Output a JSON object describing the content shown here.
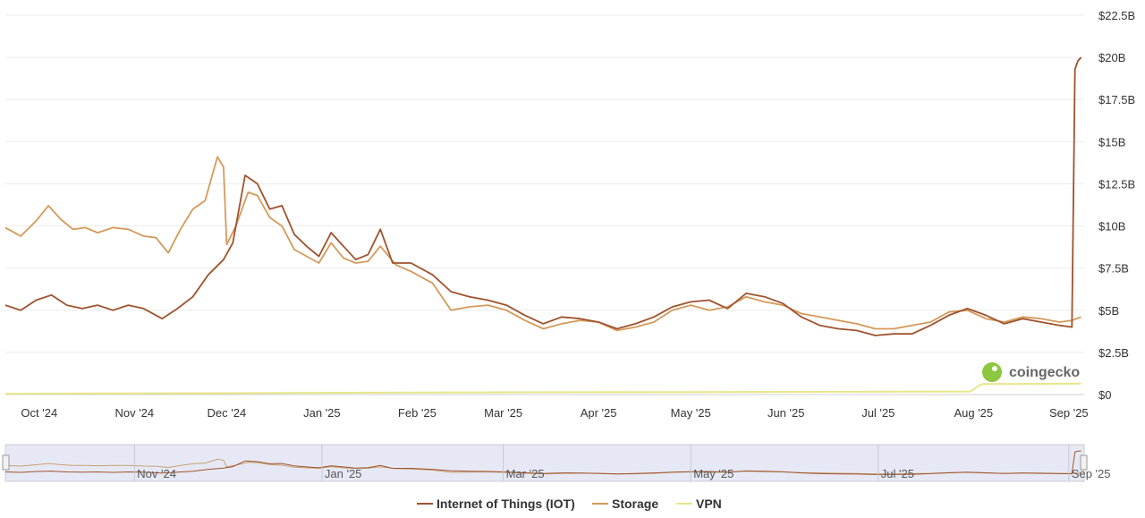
{
  "chart_data": {
    "type": "line",
    "x_range": [
      "2024-09-20",
      "2025-09-06"
    ],
    "ylim": [
      0,
      22.5
    ],
    "grid": true,
    "legend_position": "bottom",
    "y_ticks": [
      "$0",
      "$2.5B",
      "$5B",
      "$7.5B",
      "$10B",
      "$12.5B",
      "$15B",
      "$17.5B",
      "$20B",
      "$22.5B"
    ],
    "x_ticks": [
      "Oct '24",
      "Nov '24",
      "Dec '24",
      "Jan '25",
      "Feb '25",
      "Mar '25",
      "Apr '25",
      "May '25",
      "Jun '25",
      "Jul '25",
      "Aug '25",
      "Sep '25"
    ],
    "navigator_ticks": [
      "Nov '24",
      "Jan '25",
      "Mar '25",
      "May '25",
      "Jul '25",
      "Sep '25"
    ],
    "watermark": "coingecko",
    "series": [
      {
        "name": "Internet of Things (IOT)",
        "color": "#a0522d",
        "points": [
          [
            "2024-09-20",
            5.3
          ],
          [
            "2024-09-25",
            5.0
          ],
          [
            "2024-09-30",
            5.6
          ],
          [
            "2024-10-05",
            5.9
          ],
          [
            "2024-10-10",
            5.3
          ],
          [
            "2024-10-15",
            5.1
          ],
          [
            "2024-10-20",
            5.3
          ],
          [
            "2024-10-25",
            5.0
          ],
          [
            "2024-10-30",
            5.3
          ],
          [
            "2024-11-04",
            5.1
          ],
          [
            "2024-11-10",
            4.5
          ],
          [
            "2024-11-15",
            5.1
          ],
          [
            "2024-11-20",
            5.8
          ],
          [
            "2024-11-25",
            7.1
          ],
          [
            "2024-11-30",
            8.0
          ],
          [
            "2024-12-03",
            9.0
          ],
          [
            "2024-12-07",
            13.0
          ],
          [
            "2024-12-11",
            12.5
          ],
          [
            "2024-12-15",
            11.0
          ],
          [
            "2024-12-19",
            11.2
          ],
          [
            "2024-12-23",
            9.5
          ],
          [
            "2024-12-27",
            8.8
          ],
          [
            "2024-12-31",
            8.2
          ],
          [
            "2025-01-04",
            9.6
          ],
          [
            "2025-01-08",
            8.8
          ],
          [
            "2025-01-12",
            8.0
          ],
          [
            "2025-01-16",
            8.3
          ],
          [
            "2025-01-20",
            9.8
          ],
          [
            "2025-01-24",
            7.8
          ],
          [
            "2025-01-30",
            7.8
          ],
          [
            "2025-02-06",
            7.1
          ],
          [
            "2025-02-12",
            6.1
          ],
          [
            "2025-02-18",
            5.8
          ],
          [
            "2025-02-24",
            5.6
          ],
          [
            "2025-03-02",
            5.3
          ],
          [
            "2025-03-08",
            4.7
          ],
          [
            "2025-03-14",
            4.2
          ],
          [
            "2025-03-20",
            4.6
          ],
          [
            "2025-03-26",
            4.5
          ],
          [
            "2025-04-01",
            4.3
          ],
          [
            "2025-04-07",
            3.9
          ],
          [
            "2025-04-13",
            4.2
          ],
          [
            "2025-04-19",
            4.6
          ],
          [
            "2025-04-25",
            5.2
          ],
          [
            "2025-05-01",
            5.5
          ],
          [
            "2025-05-07",
            5.6
          ],
          [
            "2025-05-13",
            5.1
          ],
          [
            "2025-05-19",
            6.0
          ],
          [
            "2025-05-25",
            5.8
          ],
          [
            "2025-05-31",
            5.4
          ],
          [
            "2025-06-06",
            4.6
          ],
          [
            "2025-06-12",
            4.1
          ],
          [
            "2025-06-18",
            3.9
          ],
          [
            "2025-06-24",
            3.8
          ],
          [
            "2025-06-30",
            3.5
          ],
          [
            "2025-07-06",
            3.6
          ],
          [
            "2025-07-12",
            3.6
          ],
          [
            "2025-07-18",
            4.1
          ],
          [
            "2025-07-24",
            4.7
          ],
          [
            "2025-07-30",
            5.1
          ],
          [
            "2025-08-05",
            4.7
          ],
          [
            "2025-08-11",
            4.2
          ],
          [
            "2025-08-17",
            4.5
          ],
          [
            "2025-08-23",
            4.3
          ],
          [
            "2025-08-29",
            4.1
          ],
          [
            "2025-09-02",
            4.0
          ],
          [
            "2025-09-03",
            19.3
          ],
          [
            "2025-09-04",
            19.8
          ],
          [
            "2025-09-05",
            20.0
          ]
        ]
      },
      {
        "name": "Storage",
        "color": "#d49a5a",
        "points": [
          [
            "2024-09-20",
            9.9
          ],
          [
            "2024-09-25",
            9.4
          ],
          [
            "2024-09-30",
            10.3
          ],
          [
            "2024-10-04",
            11.2
          ],
          [
            "2024-10-08",
            10.4
          ],
          [
            "2024-10-12",
            9.8
          ],
          [
            "2024-10-16",
            9.9
          ],
          [
            "2024-10-20",
            9.6
          ],
          [
            "2024-10-25",
            9.9
          ],
          [
            "2024-10-30",
            9.8
          ],
          [
            "2024-11-04",
            9.4
          ],
          [
            "2024-11-08",
            9.3
          ],
          [
            "2024-11-12",
            8.4
          ],
          [
            "2024-11-16",
            9.8
          ],
          [
            "2024-11-20",
            11.0
          ],
          [
            "2024-11-24",
            11.5
          ],
          [
            "2024-11-28",
            14.1
          ],
          [
            "2024-11-30",
            13.5
          ],
          [
            "2024-12-01",
            8.9
          ],
          [
            "2024-12-04",
            10.0
          ],
          [
            "2024-12-08",
            12.0
          ],
          [
            "2024-12-11",
            11.8
          ],
          [
            "2024-12-15",
            10.5
          ],
          [
            "2024-12-19",
            10.0
          ],
          [
            "2024-12-23",
            8.6
          ],
          [
            "2024-12-27",
            8.2
          ],
          [
            "2024-12-31",
            7.8
          ],
          [
            "2025-01-04",
            9.0
          ],
          [
            "2025-01-08",
            8.1
          ],
          [
            "2025-01-12",
            7.8
          ],
          [
            "2025-01-16",
            7.9
          ],
          [
            "2025-01-20",
            8.8
          ],
          [
            "2025-01-25",
            7.7
          ],
          [
            "2025-01-30",
            7.3
          ],
          [
            "2025-02-06",
            6.6
          ],
          [
            "2025-02-12",
            5.0
          ],
          [
            "2025-02-18",
            5.2
          ],
          [
            "2025-02-24",
            5.3
          ],
          [
            "2025-03-02",
            5.0
          ],
          [
            "2025-03-08",
            4.4
          ],
          [
            "2025-03-14",
            3.9
          ],
          [
            "2025-03-20",
            4.2
          ],
          [
            "2025-03-26",
            4.4
          ],
          [
            "2025-04-01",
            4.3
          ],
          [
            "2025-04-07",
            3.8
          ],
          [
            "2025-04-13",
            4.0
          ],
          [
            "2025-04-19",
            4.3
          ],
          [
            "2025-04-25",
            5.0
          ],
          [
            "2025-05-01",
            5.3
          ],
          [
            "2025-05-07",
            5.0
          ],
          [
            "2025-05-13",
            5.2
          ],
          [
            "2025-05-19",
            5.8
          ],
          [
            "2025-05-25",
            5.5
          ],
          [
            "2025-05-31",
            5.3
          ],
          [
            "2025-06-06",
            4.8
          ],
          [
            "2025-06-12",
            4.6
          ],
          [
            "2025-06-18",
            4.4
          ],
          [
            "2025-06-24",
            4.2
          ],
          [
            "2025-06-30",
            3.9
          ],
          [
            "2025-07-06",
            3.9
          ],
          [
            "2025-07-12",
            4.1
          ],
          [
            "2025-07-18",
            4.3
          ],
          [
            "2025-07-24",
            4.9
          ],
          [
            "2025-07-30",
            5.0
          ],
          [
            "2025-08-05",
            4.5
          ],
          [
            "2025-08-11",
            4.3
          ],
          [
            "2025-08-17",
            4.6
          ],
          [
            "2025-08-23",
            4.5
          ],
          [
            "2025-08-29",
            4.3
          ],
          [
            "2025-09-02",
            4.4
          ],
          [
            "2025-09-05",
            4.6
          ]
        ]
      },
      {
        "name": "VPN",
        "color": "#e6e68a",
        "points": [
          [
            "2024-09-20",
            0.05
          ],
          [
            "2024-12-01",
            0.08
          ],
          [
            "2025-02-01",
            0.12
          ],
          [
            "2025-05-01",
            0.15
          ],
          [
            "2025-07-31",
            0.18
          ],
          [
            "2025-08-03",
            0.55
          ],
          [
            "2025-08-04",
            0.62
          ],
          [
            "2025-09-05",
            0.65
          ]
        ]
      }
    ]
  }
}
